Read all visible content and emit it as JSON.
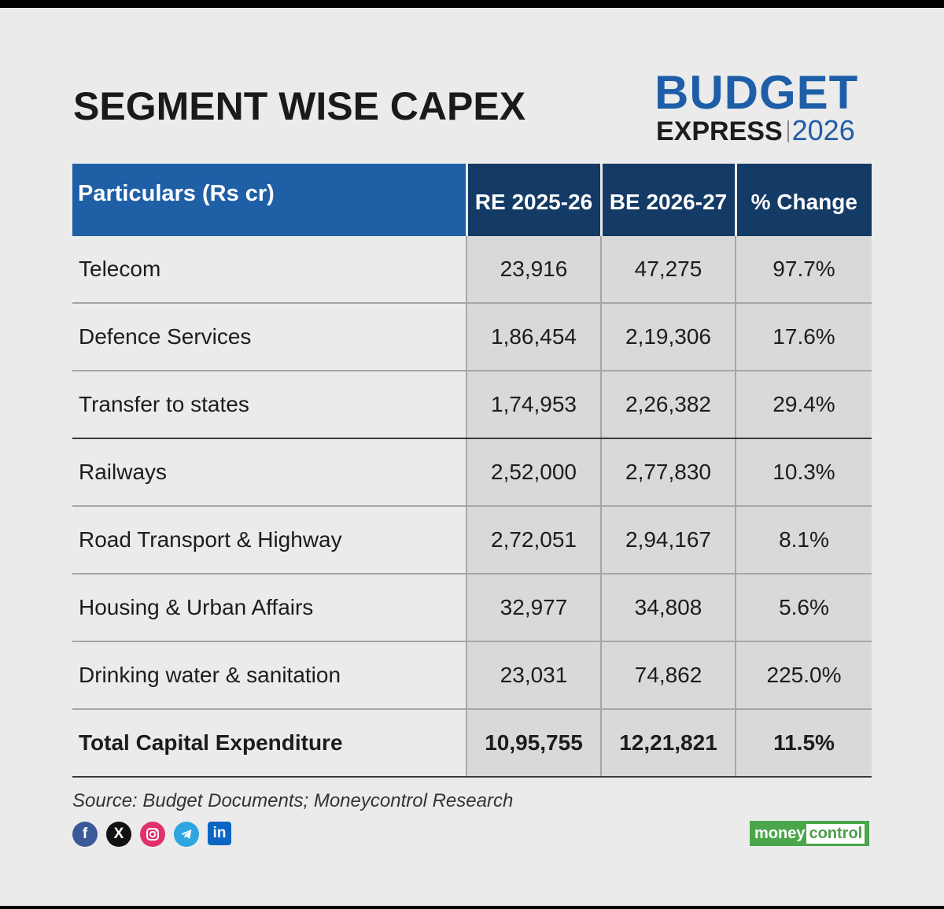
{
  "header": {
    "title": "SEGMENT WISE CAPEX",
    "brand": {
      "line1": "BUDGET",
      "line2": "EXPRESS",
      "year": "2026",
      "primary_color": "#1e5ea8"
    }
  },
  "table": {
    "columns": [
      "Particulars (Rs cr)",
      "RE 2025-26",
      "BE 2026-27",
      "% Change"
    ],
    "header_colors": {
      "first": "#1f5fa6",
      "others": "#143a66"
    },
    "rows": [
      {
        "particular": "Telecom",
        "re": "23,916",
        "be": "47,275",
        "change": "97.7%"
      },
      {
        "particular": "Defence Services",
        "re": "1,86,454",
        "be": "2,19,306",
        "change": "17.6%"
      },
      {
        "particular": "Transfer to states",
        "re": "1,74,953",
        "be": "2,26,382",
        "change": "29.4%"
      },
      {
        "particular": "Railways",
        "re": "2,52,000",
        "be": "2,77,830",
        "change": "10.3%"
      },
      {
        "particular": "Road Transport & Highway",
        "re": "2,72,051",
        "be": "2,94,167",
        "change": "8.1%"
      },
      {
        "particular": "Housing & Urban Affairs",
        "re": "32,977",
        "be": "34,808",
        "change": "5.6%"
      },
      {
        "particular": "Drinking water & sanitation",
        "re": "23,031",
        "be": "74,862",
        "change": "225.0%"
      }
    ],
    "total": {
      "particular": "Total Capital Expenditure",
      "re": "10,95,755",
      "be": "12,21,821",
      "change": "11.5%"
    }
  },
  "footer": {
    "source": "Source: Budget Documents; Moneycontrol Research",
    "social_icons": [
      "facebook-icon",
      "x-icon",
      "instagram-icon",
      "telegram-icon",
      "linkedin-icon"
    ],
    "publisher": {
      "part1": "money",
      "part2": "control",
      "color": "#4aa64a"
    }
  }
}
